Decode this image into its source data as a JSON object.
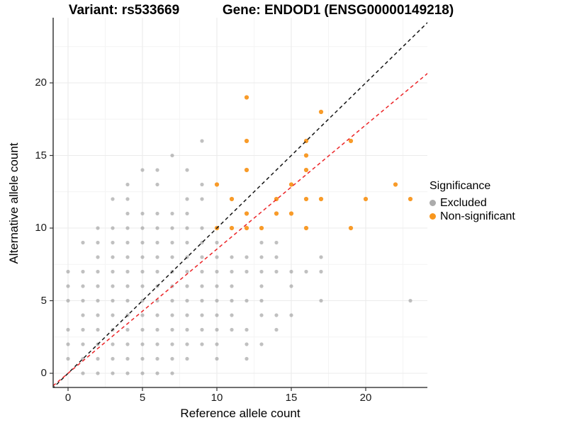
{
  "header": {
    "variant_title": "Variant: rs533669",
    "gene_title": "Gene: ENDOD1 (ENSG00000149218)"
  },
  "axes": {
    "x_label": "Reference allele count",
    "y_label": "Alternative allele count",
    "x_ticks": [
      0,
      5,
      10,
      15,
      20
    ],
    "y_ticks": [
      0,
      5,
      10,
      15,
      20
    ],
    "x_minor_ticks": [
      2.5,
      7.5,
      12.5,
      17.5,
      22.5
    ],
    "y_minor_ticks": [
      2.5,
      7.5,
      12.5,
      17.5,
      22.5
    ]
  },
  "legend": {
    "title": "Significance",
    "items": [
      {
        "label": "Excluded",
        "color": "#ABABAB"
      },
      {
        "label": "Non-significant",
        "color": "#F8961D"
      }
    ]
  },
  "chart_data": {
    "type": "scatter",
    "title": "Variant: rs533669 — Gene: ENDOD1 (ENSG00000149218)",
    "xlabel": "Reference allele count",
    "ylabel": "Alternative allele count",
    "xlim": [
      -1,
      24.2
    ],
    "ylim": [
      -1,
      24.5
    ],
    "grid": true,
    "legend_position": "right",
    "series": [
      {
        "name": "Excluded",
        "color": "#9E9E9E",
        "opacity": 0.65,
        "radius": 2.6,
        "points": [
          [
            1,
            0
          ],
          [
            2,
            0
          ],
          [
            3,
            0
          ],
          [
            4,
            0
          ],
          [
            5,
            0
          ],
          [
            6,
            0
          ],
          [
            7,
            0
          ],
          [
            0,
            1
          ],
          [
            1,
            1
          ],
          [
            2,
            1
          ],
          [
            3,
            1
          ],
          [
            4,
            1
          ],
          [
            5,
            1
          ],
          [
            6,
            1
          ],
          [
            7,
            1
          ],
          [
            8,
            1
          ],
          [
            10,
            1
          ],
          [
            12,
            1
          ],
          [
            0,
            2
          ],
          [
            1,
            2
          ],
          [
            2,
            2
          ],
          [
            3,
            2
          ],
          [
            4,
            2
          ],
          [
            5,
            2
          ],
          [
            6,
            2
          ],
          [
            7,
            2
          ],
          [
            8,
            2
          ],
          [
            9,
            2
          ],
          [
            10,
            2
          ],
          [
            12,
            2
          ],
          [
            13,
            2
          ],
          [
            0,
            3
          ],
          [
            1,
            3
          ],
          [
            2,
            3
          ],
          [
            3,
            3
          ],
          [
            4,
            3
          ],
          [
            5,
            3
          ],
          [
            6,
            3
          ],
          [
            7,
            3
          ],
          [
            8,
            3
          ],
          [
            9,
            3
          ],
          [
            10,
            3
          ],
          [
            11,
            3
          ],
          [
            12,
            3
          ],
          [
            14,
            3
          ],
          [
            1,
            4
          ],
          [
            2,
            4
          ],
          [
            3,
            4
          ],
          [
            4,
            4
          ],
          [
            5,
            4
          ],
          [
            6,
            4
          ],
          [
            7,
            4
          ],
          [
            8,
            4
          ],
          [
            9,
            4
          ],
          [
            10,
            4
          ],
          [
            11,
            4
          ],
          [
            13,
            4
          ],
          [
            14,
            4
          ],
          [
            15,
            4
          ],
          [
            0,
            5
          ],
          [
            1,
            5
          ],
          [
            2,
            5
          ],
          [
            3,
            5
          ],
          [
            4,
            5
          ],
          [
            5,
            5
          ],
          [
            6,
            5
          ],
          [
            7,
            5
          ],
          [
            8,
            5
          ],
          [
            9,
            5
          ],
          [
            10,
            5
          ],
          [
            11,
            5
          ],
          [
            12,
            5
          ],
          [
            13,
            5
          ],
          [
            17,
            5
          ],
          [
            23,
            5
          ],
          [
            0,
            6
          ],
          [
            1,
            6
          ],
          [
            2,
            6
          ],
          [
            3,
            6
          ],
          [
            4,
            6
          ],
          [
            5,
            6
          ],
          [
            6,
            6
          ],
          [
            7,
            6
          ],
          [
            8,
            6
          ],
          [
            9,
            6
          ],
          [
            10,
            6
          ],
          [
            11,
            6
          ],
          [
            13,
            6
          ],
          [
            15,
            6
          ],
          [
            0,
            7
          ],
          [
            1,
            7
          ],
          [
            2,
            7
          ],
          [
            3,
            7
          ],
          [
            4,
            7
          ],
          [
            5,
            7
          ],
          [
            6,
            7
          ],
          [
            7,
            7
          ],
          [
            8,
            7
          ],
          [
            9,
            7
          ],
          [
            10,
            7
          ],
          [
            11,
            7
          ],
          [
            12,
            7
          ],
          [
            13,
            7
          ],
          [
            14,
            7
          ],
          [
            15,
            7
          ],
          [
            16,
            7
          ],
          [
            17,
            7
          ],
          [
            2,
            8
          ],
          [
            3,
            8
          ],
          [
            4,
            8
          ],
          [
            5,
            8
          ],
          [
            6,
            8
          ],
          [
            7,
            8
          ],
          [
            8,
            8
          ],
          [
            9,
            8
          ],
          [
            10,
            8
          ],
          [
            11,
            8
          ],
          [
            12,
            8
          ],
          [
            13,
            8
          ],
          [
            14,
            8
          ],
          [
            17,
            8
          ],
          [
            1,
            9
          ],
          [
            2,
            9
          ],
          [
            3,
            9
          ],
          [
            4,
            9
          ],
          [
            5,
            9
          ],
          [
            6,
            9
          ],
          [
            7,
            9
          ],
          [
            8,
            9
          ],
          [
            9,
            9
          ],
          [
            10,
            9
          ],
          [
            13,
            9
          ],
          [
            14,
            9
          ],
          [
            2,
            10
          ],
          [
            3,
            10
          ],
          [
            4,
            10
          ],
          [
            5,
            10
          ],
          [
            6,
            10
          ],
          [
            7,
            10
          ],
          [
            8,
            10
          ],
          [
            9,
            10
          ],
          [
            4,
            11
          ],
          [
            5,
            11
          ],
          [
            6,
            11
          ],
          [
            7,
            11
          ],
          [
            8,
            11
          ],
          [
            3,
            12
          ],
          [
            4,
            12
          ],
          [
            8,
            12
          ],
          [
            9,
            12
          ],
          [
            4,
            13
          ],
          [
            6,
            13
          ],
          [
            9,
            13
          ],
          [
            5,
            14
          ],
          [
            6,
            14
          ],
          [
            8,
            14
          ],
          [
            7,
            15
          ],
          [
            9,
            16
          ]
        ]
      },
      {
        "name": "Non-significant",
        "color": "#F8961D",
        "opacity": 0.95,
        "radius": 3.1,
        "points": [
          [
            10,
            10
          ],
          [
            11,
            10
          ],
          [
            12,
            10
          ],
          [
            13,
            10
          ],
          [
            16,
            10
          ],
          [
            19,
            10
          ],
          [
            12,
            11
          ],
          [
            14,
            11
          ],
          [
            15,
            11
          ],
          [
            11,
            12
          ],
          [
            14,
            12
          ],
          [
            16,
            12
          ],
          [
            17,
            12
          ],
          [
            20,
            12
          ],
          [
            23,
            12
          ],
          [
            10,
            13
          ],
          [
            15,
            13
          ],
          [
            22,
            13
          ],
          [
            12,
            14
          ],
          [
            16,
            14
          ],
          [
            16,
            15
          ],
          [
            12,
            16
          ],
          [
            16,
            16
          ],
          [
            19,
            16
          ],
          [
            17,
            18
          ],
          [
            12,
            19
          ]
        ]
      }
    ],
    "reference_lines": [
      {
        "name": "identity-line",
        "color": "#141414",
        "style": "dashed",
        "slope": 1,
        "intercept": 0
      },
      {
        "name": "expected-ratio-line",
        "color": "#EC2427",
        "style": "dashed",
        "slope": 0.855,
        "intercept": 0
      }
    ]
  }
}
